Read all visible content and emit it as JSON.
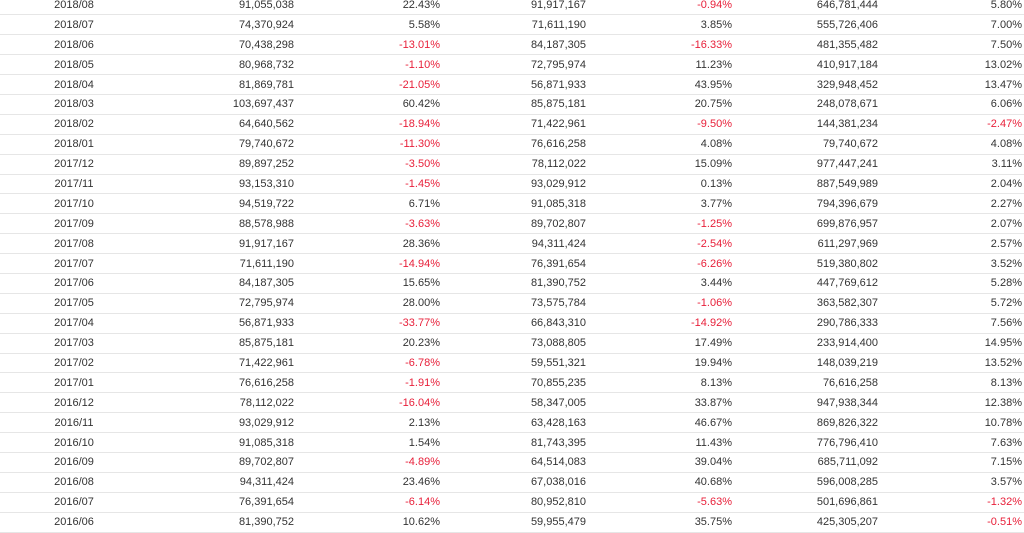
{
  "colors": {
    "negative": "#e8203a",
    "text": "#333333",
    "rule": "#e6e6e6"
  },
  "rows": [
    [
      "2018/08",
      "91,055,038",
      "22.43%",
      "91,917,167",
      "-0.94%",
      "646,781,444",
      "5.80%"
    ],
    [
      "2018/07",
      "74,370,924",
      "5.58%",
      "71,611,190",
      "3.85%",
      "555,726,406",
      "7.00%"
    ],
    [
      "2018/06",
      "70,438,298",
      "-13.01%",
      "84,187,305",
      "-16.33%",
      "481,355,482",
      "7.50%"
    ],
    [
      "2018/05",
      "80,968,732",
      "-1.10%",
      "72,795,974",
      "11.23%",
      "410,917,184",
      "13.02%"
    ],
    [
      "2018/04",
      "81,869,781",
      "-21.05%",
      "56,871,933",
      "43.95%",
      "329,948,452",
      "13.47%"
    ],
    [
      "2018/03",
      "103,697,437",
      "60.42%",
      "85,875,181",
      "20.75%",
      "248,078,671",
      "6.06%"
    ],
    [
      "2018/02",
      "64,640,562",
      "-18.94%",
      "71,422,961",
      "-9.50%",
      "144,381,234",
      "-2.47%"
    ],
    [
      "2018/01",
      "79,740,672",
      "-11.30%",
      "76,616,258",
      "4.08%",
      "79,740,672",
      "4.08%"
    ],
    [
      "2017/12",
      "89,897,252",
      "-3.50%",
      "78,112,022",
      "15.09%",
      "977,447,241",
      "3.11%"
    ],
    [
      "2017/11",
      "93,153,310",
      "-1.45%",
      "93,029,912",
      "0.13%",
      "887,549,989",
      "2.04%"
    ],
    [
      "2017/10",
      "94,519,722",
      "6.71%",
      "91,085,318",
      "3.77%",
      "794,396,679",
      "2.27%"
    ],
    [
      "2017/09",
      "88,578,988",
      "-3.63%",
      "89,702,807",
      "-1.25%",
      "699,876,957",
      "2.07%"
    ],
    [
      "2017/08",
      "91,917,167",
      "28.36%",
      "94,311,424",
      "-2.54%",
      "611,297,969",
      "2.57%"
    ],
    [
      "2017/07",
      "71,611,190",
      "-14.94%",
      "76,391,654",
      "-6.26%",
      "519,380,802",
      "3.52%"
    ],
    [
      "2017/06",
      "84,187,305",
      "15.65%",
      "81,390,752",
      "3.44%",
      "447,769,612",
      "5.28%"
    ],
    [
      "2017/05",
      "72,795,974",
      "28.00%",
      "73,575,784",
      "-1.06%",
      "363,582,307",
      "5.72%"
    ],
    [
      "2017/04",
      "56,871,933",
      "-33.77%",
      "66,843,310",
      "-14.92%",
      "290,786,333",
      "7.56%"
    ],
    [
      "2017/03",
      "85,875,181",
      "20.23%",
      "73,088,805",
      "17.49%",
      "233,914,400",
      "14.95%"
    ],
    [
      "2017/02",
      "71,422,961",
      "-6.78%",
      "59,551,321",
      "19.94%",
      "148,039,219",
      "13.52%"
    ],
    [
      "2017/01",
      "76,616,258",
      "-1.91%",
      "70,855,235",
      "8.13%",
      "76,616,258",
      "8.13%"
    ],
    [
      "2016/12",
      "78,112,022",
      "-16.04%",
      "58,347,005",
      "33.87%",
      "947,938,344",
      "12.38%"
    ],
    [
      "2016/11",
      "93,029,912",
      "2.13%",
      "63,428,163",
      "46.67%",
      "869,826,322",
      "10.78%"
    ],
    [
      "2016/10",
      "91,085,318",
      "1.54%",
      "81,743,395",
      "11.43%",
      "776,796,410",
      "7.63%"
    ],
    [
      "2016/09",
      "89,702,807",
      "-4.89%",
      "64,514,083",
      "39.04%",
      "685,711,092",
      "7.15%"
    ],
    [
      "2016/08",
      "94,311,424",
      "23.46%",
      "67,038,016",
      "40.68%",
      "596,008,285",
      "3.57%"
    ],
    [
      "2016/07",
      "76,391,654",
      "-6.14%",
      "80,952,810",
      "-5.63%",
      "501,696,861",
      "-1.32%"
    ],
    [
      "2016/06",
      "81,390,752",
      "10.62%",
      "59,955,479",
      "35.75%",
      "425,305,207",
      "-0.51%"
    ]
  ]
}
